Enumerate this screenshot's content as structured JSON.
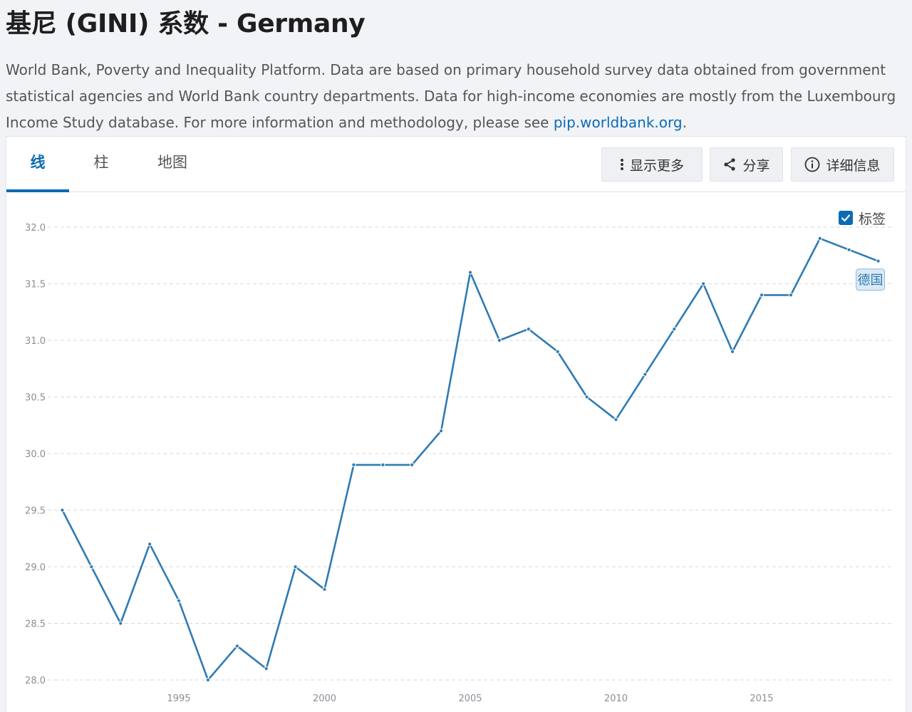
{
  "page": {
    "title": "基尼 (GINI) 系数 - Germany",
    "description": "World Bank, Poverty and Inequality Platform. Data are based on primary household survey data obtained from government statistical agencies and World Bank country departments. Data for high-income economies are mostly from the Luxembourg Income Study database. For more information and methodology, please see ",
    "link_text": "pip.worldbank.org",
    "description_end": "."
  },
  "tabs": [
    {
      "label": "线",
      "active": true
    },
    {
      "label": "柱",
      "active": false
    },
    {
      "label": "地图",
      "active": false
    }
  ],
  "toolbar": {
    "more_label": "显示更多",
    "share_label": "分享",
    "details_label": "详细信息"
  },
  "legend": {
    "label": "标签",
    "checked": true
  },
  "colors": {
    "accent": "#0b6bb5",
    "line": "#2f7bb3",
    "grid": "#d6d9de",
    "axis_text": "#8b8f96"
  },
  "chart_data": {
    "type": "line",
    "x": [
      1991,
      1992,
      1993,
      1994,
      1995,
      1996,
      1997,
      1998,
      1999,
      2000,
      2001,
      2002,
      2003,
      2004,
      2005,
      2006,
      2007,
      2008,
      2009,
      2010,
      2011,
      2012,
      2013,
      2014,
      2015,
      2016,
      2017,
      2018,
      2019
    ],
    "series": [
      {
        "name": "德国",
        "values": [
          29.5,
          29.0,
          28.5,
          29.2,
          28.7,
          28.0,
          28.3,
          28.1,
          29.0,
          28.8,
          29.9,
          29.9,
          29.9,
          30.2,
          31.6,
          31.0,
          31.1,
          30.9,
          30.5,
          30.3,
          30.7,
          31.1,
          31.5,
          30.9,
          31.4,
          31.4,
          31.9,
          31.8,
          31.7
        ]
      }
    ],
    "xlabel": "",
    "ylabel": "",
    "xticks": [
      1995,
      2000,
      2005,
      2010,
      2015
    ],
    "yticks": [
      28.0,
      28.5,
      29.0,
      29.5,
      30.0,
      30.5,
      31.0,
      31.5,
      32.0
    ],
    "ylim": [
      28.0,
      32.0
    ],
    "grid": true,
    "legend_position": "top-right"
  }
}
